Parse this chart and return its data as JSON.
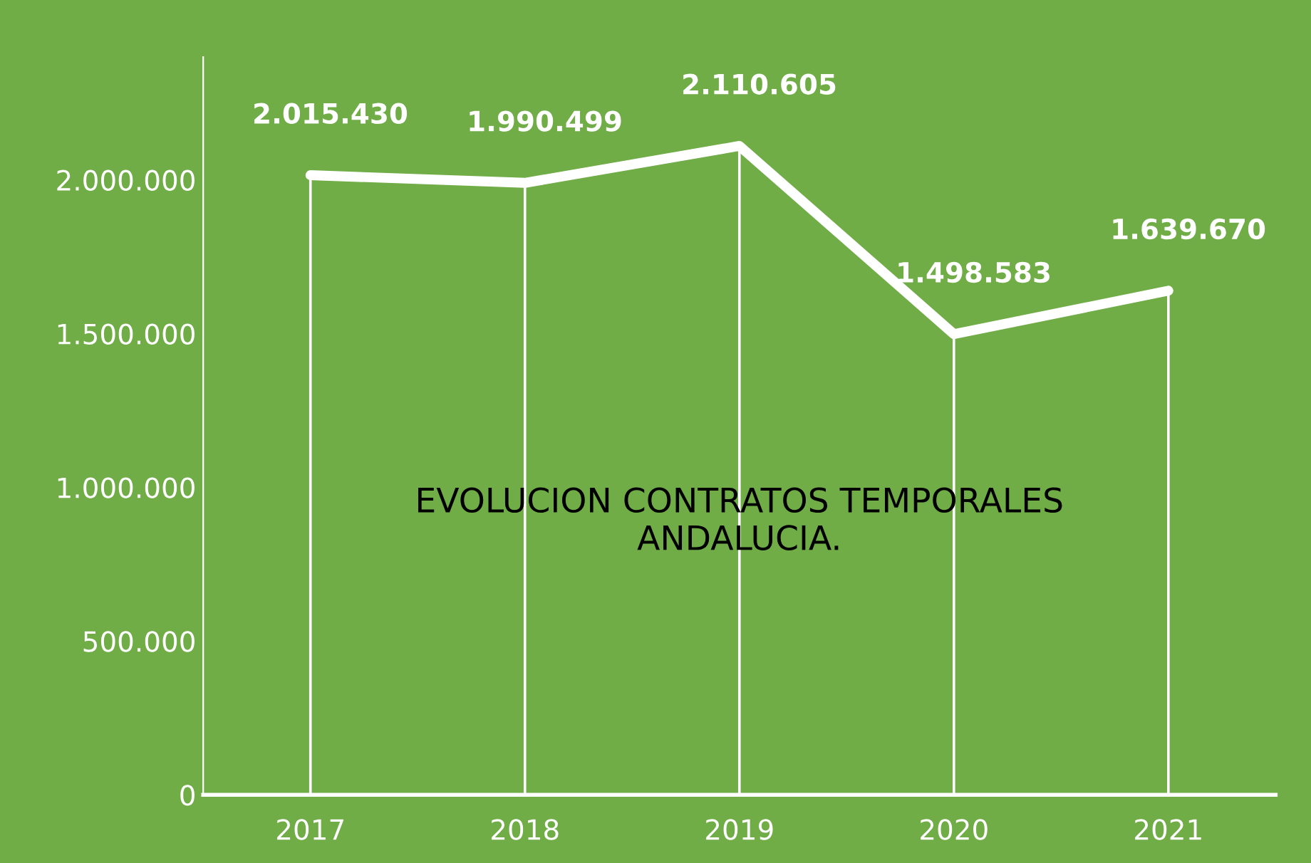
{
  "chart_data": {
    "type": "line",
    "title": "EVOLUCION CONTRATOS TEMPORALES\nANDALUCIA.",
    "categories": [
      "2017",
      "2018",
      "2019",
      "2020",
      "2021"
    ],
    "series": [
      {
        "type": "bar",
        "color": "#ffffff",
        "values": [
          2015430,
          1990499,
          2110605,
          1498583,
          1639670
        ]
      },
      {
        "color": "#ffffff",
        "values": [
          2015430,
          1990499,
          2110605,
          1498583,
          1639670
        ],
        "value_labels": [
          "2.015.430",
          "1.990.499",
          "2.110.605",
          "1.498.583",
          "1.639.670"
        ]
      }
    ],
    "ylim": [
      0,
      2400000
    ],
    "yticks": [
      {
        "value": 0,
        "label": "0"
      },
      {
        "value": 500000,
        "label": "500.000"
      },
      {
        "value": 1000000,
        "label": "1.000.000"
      },
      {
        "value": 1500000,
        "label": "1.500.000"
      },
      {
        "value": 2000000,
        "label": "2.000.000"
      }
    ],
    "grid": false,
    "legend": false,
    "marker": "none",
    "line_style": "solid"
  }
}
